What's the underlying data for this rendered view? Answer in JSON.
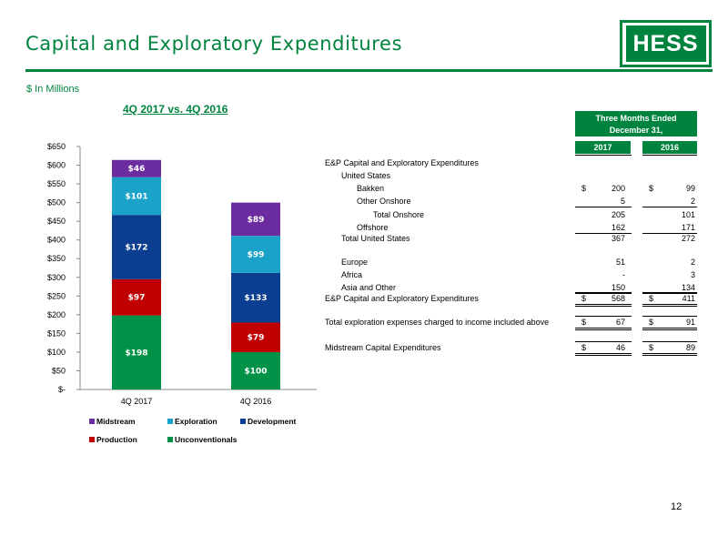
{
  "header": {
    "title": "Capital and Exploratory Expenditures",
    "subtitle": "$ In Millions",
    "logo_text": "HESS",
    "page_number": "12",
    "brand_color": "#00833e"
  },
  "chart_data": {
    "type": "bar",
    "stacked": true,
    "title": "4Q 2017 vs. 4Q 2016",
    "categories": [
      "4Q 2017",
      "4Q 2016"
    ],
    "y_ticks": [
      "$-",
      "$50",
      "$100",
      "$150",
      "$200",
      "$250",
      "$300",
      "$350",
      "$400",
      "$450",
      "$500",
      "$550",
      "$600",
      "$650"
    ],
    "ylim": [
      0,
      650
    ],
    "grid": false,
    "legend_position": "bottom",
    "series": [
      {
        "name": "Unconventionals",
        "color": "#009247",
        "values": [
          198,
          100
        ],
        "labels": [
          "$198",
          "$100"
        ]
      },
      {
        "name": "Production",
        "color": "#c00000",
        "values": [
          97,
          79
        ],
        "labels": [
          "$97",
          "$79"
        ]
      },
      {
        "name": "Development",
        "color": "#0b3d91",
        "values": [
          172,
          133
        ],
        "labels": [
          "$172",
          "$133"
        ]
      },
      {
        "name": "Exploration",
        "color": "#1ba2c9",
        "values": [
          101,
          99
        ],
        "labels": [
          "$101",
          "$99"
        ]
      },
      {
        "name": "Midstream",
        "color": "#6a2c9f",
        "values": [
          46,
          89
        ],
        "labels": [
          "$46",
          "$89"
        ]
      }
    ],
    "legend_order": [
      "Midstream",
      "Exploration",
      "Development",
      "Production",
      "Unconventionals"
    ]
  },
  "table": {
    "header_top": [
      "Three Months Ended",
      "December 31,"
    ],
    "years": [
      "2017",
      "2016"
    ],
    "rows": [
      {
        "label": "E&P Capital and Exploratory Expenditures",
        "indent": 0,
        "v1": "",
        "v2": "",
        "cur": false
      },
      {
        "label": "United States",
        "indent": 1,
        "v1": "",
        "v2": "",
        "cur": false
      },
      {
        "label": "Bakken",
        "indent": 2,
        "v1": "200",
        "v2": "99",
        "cur": true
      },
      {
        "label": "Other Onshore",
        "indent": 2,
        "v1": "5",
        "v2": "2",
        "cur": false
      },
      {
        "label": "Total Onshore",
        "indent": 3,
        "v1": "205",
        "v2": "101",
        "cur": false
      },
      {
        "label": "Offshore",
        "indent": 2,
        "v1": "162",
        "v2": "171",
        "cur": false
      },
      {
        "label": "Total United States",
        "indent": 1,
        "v1": "367",
        "v2": "272",
        "cur": false
      },
      {
        "label": "Europe",
        "indent": 1,
        "v1": "51",
        "v2": "2",
        "cur": false
      },
      {
        "label": "Africa",
        "indent": 1,
        "v1": "-",
        "v2": "3",
        "cur": false
      },
      {
        "label": "Asia and Other",
        "indent": 1,
        "v1": "150",
        "v2": "134",
        "cur": false
      },
      {
        "label": "E&P Capital and Exploratory Expenditures",
        "indent": 0,
        "v1": "568",
        "v2": "411",
        "cur": true
      },
      {
        "label": "Total exploration expenses charged to income included above",
        "indent": 0,
        "v1": "67",
        "v2": "91",
        "cur": true
      },
      {
        "label": "Midstream Capital Expenditures",
        "indent": 0,
        "v1": "46",
        "v2": "89",
        "cur": true
      }
    ],
    "currency_symbol": "$"
  }
}
